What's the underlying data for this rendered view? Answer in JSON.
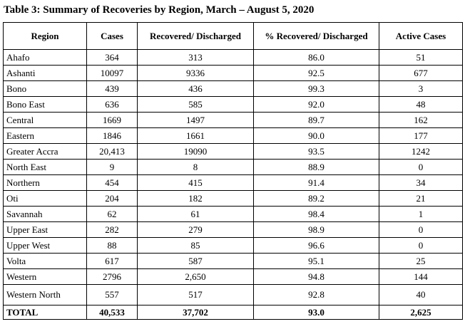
{
  "title": "Table 3: Summary of Recoveries by Region, March – August 5, 2020",
  "table": {
    "header": [
      "Region",
      "Cases",
      "Recovered/ Discharged",
      "% Recovered/ Discharged",
      "Active Cases"
    ],
    "rows": [
      [
        "Ahafo",
        "364",
        "313",
        "86.0",
        "51"
      ],
      [
        "Ashanti",
        "10097",
        "9336",
        "92.5",
        "677"
      ],
      [
        "Bono",
        "439",
        "436",
        "99.3",
        "3"
      ],
      [
        "Bono East",
        "636",
        "585",
        "92.0",
        "48"
      ],
      [
        "Central",
        "1669",
        "1497",
        "89.7",
        "162"
      ],
      [
        "Eastern",
        "1846",
        "1661",
        "90.0",
        "177"
      ],
      [
        "Greater Accra",
        "20,413",
        "19090",
        "93.5",
        "1242"
      ],
      [
        "North East",
        "9",
        "8",
        "88.9",
        "0"
      ],
      [
        "Northern",
        "454",
        "415",
        "91.4",
        "34"
      ],
      [
        "Oti",
        "204",
        "182",
        "89.2",
        "21"
      ],
      [
        "Savannah",
        "62",
        "61",
        "98.4",
        "1"
      ],
      [
        "Upper East",
        "282",
        "279",
        "98.9",
        "0"
      ],
      [
        "Upper West",
        "88",
        "85",
        "96.6",
        "0"
      ],
      [
        "Volta",
        "617",
        "587",
        "95.1",
        "25"
      ],
      [
        "Western",
        "2796",
        "2,650",
        "94.8",
        "144"
      ],
      [
        "Western North",
        "557",
        "517",
        "92.8",
        "40"
      ]
    ],
    "total": [
      "TOTAL",
      "40,533",
      "37,702",
      "93.0",
      "2,625"
    ]
  }
}
